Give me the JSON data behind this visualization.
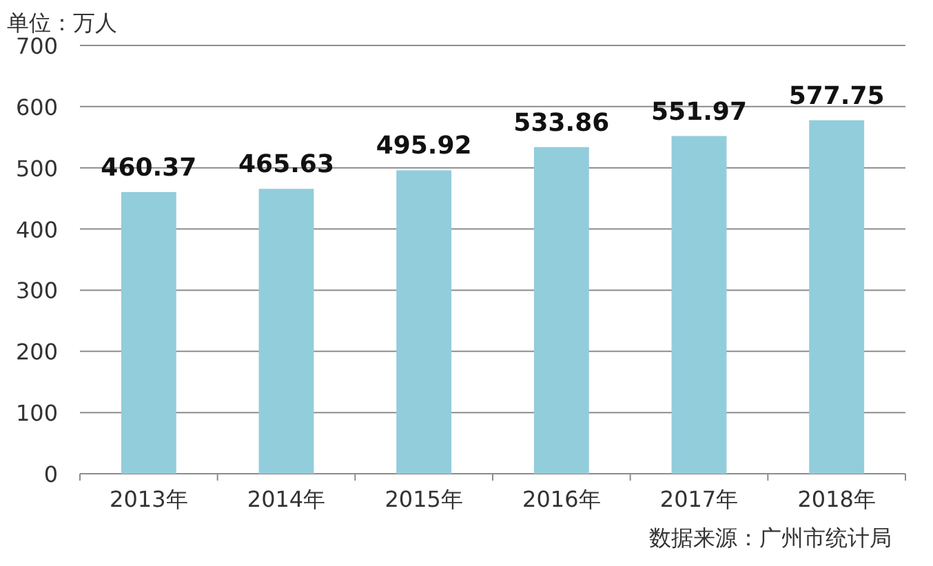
{
  "chart_data": {
    "type": "bar",
    "ylabel": "单位：万人",
    "categories": [
      "2013年",
      "2014年",
      "2015年",
      "2016年",
      "2017年",
      "2018年"
    ],
    "values": [
      460.37,
      465.63,
      495.92,
      533.86,
      551.97,
      577.75
    ],
    "color": "#92cddc",
    "ylim": [
      0,
      700
    ],
    "yticks": [
      0,
      100,
      200,
      300,
      400,
      500,
      600,
      700
    ],
    "grid": "y",
    "data_labels": true,
    "annotations": [
      "数据来源：广州市统计局"
    ]
  }
}
